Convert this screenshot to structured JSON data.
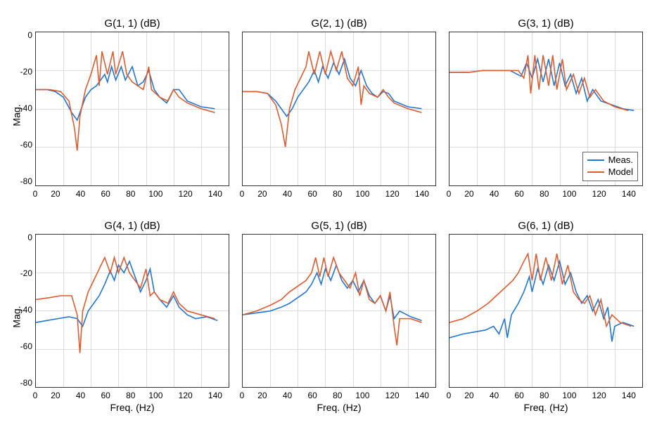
{
  "layout": {
    "rows": 2,
    "cols": 3,
    "background_color": "#ffffff",
    "grid_color": "#dcdcdc",
    "axis_color": "#333333",
    "font_family": "sans-serif",
    "title_fontsize": 15,
    "label_fontsize": 14,
    "tick_fontsize": 12
  },
  "legend": {
    "items": [
      {
        "label": "Meas.",
        "color": "#1f77d4"
      },
      {
        "label": "Model",
        "color": "#e15b2e"
      }
    ],
    "position_panel": 2
  },
  "axes": {
    "xlim": [
      0,
      140
    ],
    "ylim": [
      -80,
      0
    ],
    "xticks": [
      0,
      20,
      40,
      60,
      80,
      100,
      120,
      140
    ],
    "yticks": [
      0,
      -20,
      -40,
      -60,
      -80
    ],
    "xlabel": "Freq. (Hz)",
    "ylabel": "Mag."
  },
  "panels": [
    {
      "title": "G(1, 1) (dB)",
      "has_ylabel": true,
      "has_xlabel": false,
      "meas": [
        [
          0,
          -30
        ],
        [
          8,
          -30
        ],
        [
          14,
          -31
        ],
        [
          20,
          -34
        ],
        [
          26,
          -42
        ],
        [
          30,
          -46
        ],
        [
          34,
          -38
        ],
        [
          36,
          -34
        ],
        [
          40,
          -30
        ],
        [
          44,
          -28
        ],
        [
          48,
          -24
        ],
        [
          50,
          -22
        ],
        [
          52,
          -26
        ],
        [
          55,
          -18
        ],
        [
          58,
          -25
        ],
        [
          62,
          -18
        ],
        [
          65,
          -25
        ],
        [
          70,
          -18
        ],
        [
          74,
          -28
        ],
        [
          78,
          -26
        ],
        [
          82,
          -20
        ],
        [
          86,
          -30
        ],
        [
          90,
          -34
        ],
        [
          95,
          -37
        ],
        [
          100,
          -30
        ],
        [
          104,
          -30
        ],
        [
          110,
          -36
        ],
        [
          120,
          -39
        ],
        [
          130,
          -40
        ]
      ],
      "model": [
        [
          0,
          -30
        ],
        [
          10,
          -30
        ],
        [
          18,
          -31
        ],
        [
          24,
          -36
        ],
        [
          28,
          -50
        ],
        [
          30,
          -62
        ],
        [
          32,
          -44
        ],
        [
          36,
          -30
        ],
        [
          40,
          -22
        ],
        [
          44,
          -12
        ],
        [
          46,
          -28
        ],
        [
          48,
          -10
        ],
        [
          52,
          -22
        ],
        [
          56,
          -10
        ],
        [
          58,
          -22
        ],
        [
          63,
          -10
        ],
        [
          66,
          -22
        ],
        [
          70,
          -26
        ],
        [
          74,
          -28
        ],
        [
          78,
          -30
        ],
        [
          82,
          -18
        ],
        [
          84,
          -30
        ],
        [
          90,
          -34
        ],
        [
          96,
          -36
        ],
        [
          100,
          -30
        ],
        [
          104,
          -34
        ],
        [
          110,
          -37
        ],
        [
          120,
          -40
        ],
        [
          130,
          -42
        ]
      ]
    },
    {
      "title": "G(2, 1) (dB)",
      "has_ylabel": false,
      "has_xlabel": false,
      "meas": [
        [
          0,
          -31
        ],
        [
          10,
          -31
        ],
        [
          18,
          -32
        ],
        [
          24,
          -36
        ],
        [
          28,
          -40
        ],
        [
          32,
          -44
        ],
        [
          36,
          -40
        ],
        [
          40,
          -34
        ],
        [
          44,
          -30
        ],
        [
          48,
          -26
        ],
        [
          52,
          -20
        ],
        [
          55,
          -26
        ],
        [
          58,
          -18
        ],
        [
          62,
          -24
        ],
        [
          66,
          -16
        ],
        [
          70,
          -22
        ],
        [
          74,
          -14
        ],
        [
          78,
          -24
        ],
        [
          82,
          -28
        ],
        [
          86,
          -20
        ],
        [
          90,
          -28
        ],
        [
          94,
          -32
        ],
        [
          98,
          -34
        ],
        [
          102,
          -31
        ],
        [
          106,
          -32
        ],
        [
          110,
          -36
        ],
        [
          120,
          -39
        ],
        [
          130,
          -40
        ]
      ],
      "model": [
        [
          0,
          -31
        ],
        [
          10,
          -31
        ],
        [
          18,
          -32
        ],
        [
          24,
          -38
        ],
        [
          28,
          -48
        ],
        [
          31,
          -60
        ],
        [
          34,
          -40
        ],
        [
          38,
          -30
        ],
        [
          42,
          -24
        ],
        [
          46,
          -18
        ],
        [
          48,
          -10
        ],
        [
          52,
          -22
        ],
        [
          56,
          -10
        ],
        [
          60,
          -22
        ],
        [
          64,
          -10
        ],
        [
          68,
          -20
        ],
        [
          72,
          -10
        ],
        [
          76,
          -24
        ],
        [
          80,
          -28
        ],
        [
          84,
          -18
        ],
        [
          86,
          -38
        ],
        [
          88,
          -28
        ],
        [
          92,
          -32
        ],
        [
          98,
          -34
        ],
        [
          102,
          -30
        ],
        [
          106,
          -34
        ],
        [
          110,
          -37
        ],
        [
          120,
          -40
        ],
        [
          130,
          -42
        ]
      ]
    },
    {
      "title": "G(3, 1) (dB)",
      "has_ylabel": false,
      "has_xlabel": false,
      "meas": [
        [
          0,
          -21
        ],
        [
          14,
          -21
        ],
        [
          24,
          -20
        ],
        [
          34,
          -20
        ],
        [
          44,
          -20
        ],
        [
          52,
          -23
        ],
        [
          56,
          -16
        ],
        [
          60,
          -24
        ],
        [
          64,
          -14
        ],
        [
          68,
          -26
        ],
        [
          72,
          -14
        ],
        [
          76,
          -28
        ],
        [
          80,
          -16
        ],
        [
          84,
          -28
        ],
        [
          88,
          -22
        ],
        [
          92,
          -32
        ],
        [
          96,
          -24
        ],
        [
          100,
          -36
        ],
        [
          104,
          -30
        ],
        [
          110,
          -36
        ],
        [
          118,
          -38
        ],
        [
          126,
          -40
        ],
        [
          134,
          -41
        ]
      ],
      "model": [
        [
          0,
          -21
        ],
        [
          14,
          -21
        ],
        [
          24,
          -20
        ],
        [
          34,
          -20
        ],
        [
          44,
          -20
        ],
        [
          50,
          -20
        ],
        [
          54,
          -24
        ],
        [
          57,
          -12
        ],
        [
          59,
          -32
        ],
        [
          62,
          -12
        ],
        [
          65,
          -30
        ],
        [
          68,
          -12
        ],
        [
          72,
          -28
        ],
        [
          75,
          -12
        ],
        [
          78,
          -30
        ],
        [
          82,
          -14
        ],
        [
          85,
          -30
        ],
        [
          90,
          -22
        ],
        [
          94,
          -32
        ],
        [
          98,
          -24
        ],
        [
          102,
          -34
        ],
        [
          106,
          -30
        ],
        [
          112,
          -36
        ],
        [
          120,
          -39
        ],
        [
          130,
          -41
        ]
      ]
    },
    {
      "title": "G(4, 1) (dB)",
      "has_ylabel": true,
      "has_xlabel": true,
      "meas": [
        [
          0,
          -46
        ],
        [
          8,
          -45
        ],
        [
          16,
          -44
        ],
        [
          24,
          -43
        ],
        [
          30,
          -44
        ],
        [
          34,
          -48
        ],
        [
          38,
          -40
        ],
        [
          42,
          -36
        ],
        [
          46,
          -32
        ],
        [
          50,
          -26
        ],
        [
          54,
          -19
        ],
        [
          57,
          -24
        ],
        [
          60,
          -16
        ],
        [
          64,
          -20
        ],
        [
          68,
          -14
        ],
        [
          72,
          -22
        ],
        [
          76,
          -30
        ],
        [
          80,
          -24
        ],
        [
          83,
          -18
        ],
        [
          86,
          -30
        ],
        [
          90,
          -34
        ],
        [
          95,
          -38
        ],
        [
          100,
          -32
        ],
        [
          104,
          -38
        ],
        [
          110,
          -42
        ],
        [
          116,
          -44
        ],
        [
          124,
          -43
        ],
        [
          132,
          -45
        ]
      ],
      "model": [
        [
          0,
          -34
        ],
        [
          10,
          -33
        ],
        [
          18,
          -32
        ],
        [
          26,
          -32
        ],
        [
          30,
          -42
        ],
        [
          32,
          -62
        ],
        [
          34,
          -40
        ],
        [
          38,
          -30
        ],
        [
          42,
          -24
        ],
        [
          46,
          -18
        ],
        [
          50,
          -12
        ],
        [
          54,
          -20
        ],
        [
          57,
          -12
        ],
        [
          60,
          -20
        ],
        [
          64,
          -12
        ],
        [
          68,
          -20
        ],
        [
          72,
          -24
        ],
        [
          76,
          -28
        ],
        [
          80,
          -18
        ],
        [
          83,
          -32
        ],
        [
          86,
          -30
        ],
        [
          90,
          -34
        ],
        [
          96,
          -36
        ],
        [
          100,
          -30
        ],
        [
          104,
          -36
        ],
        [
          110,
          -40
        ],
        [
          120,
          -42
        ],
        [
          130,
          -44
        ]
      ]
    },
    {
      "title": "G(5, 1) (dB)",
      "has_ylabel": false,
      "has_xlabel": true,
      "meas": [
        [
          0,
          -42
        ],
        [
          10,
          -41
        ],
        [
          20,
          -40
        ],
        [
          28,
          -38
        ],
        [
          34,
          -36
        ],
        [
          40,
          -33
        ],
        [
          46,
          -30
        ],
        [
          50,
          -26
        ],
        [
          54,
          -20
        ],
        [
          57,
          -26
        ],
        [
          60,
          -18
        ],
        [
          64,
          -24
        ],
        [
          68,
          -16
        ],
        [
          72,
          -24
        ],
        [
          76,
          -28
        ],
        [
          80,
          -24
        ],
        [
          84,
          -30
        ],
        [
          88,
          -24
        ],
        [
          92,
          -32
        ],
        [
          96,
          -36
        ],
        [
          100,
          -32
        ],
        [
          104,
          -40
        ],
        [
          107,
          -32
        ],
        [
          110,
          -44
        ],
        [
          114,
          -40
        ],
        [
          122,
          -43
        ],
        [
          130,
          -45
        ]
      ],
      "model": [
        [
          0,
          -42
        ],
        [
          10,
          -40
        ],
        [
          20,
          -37
        ],
        [
          28,
          -34
        ],
        [
          34,
          -30
        ],
        [
          40,
          -27
        ],
        [
          46,
          -24
        ],
        [
          50,
          -20
        ],
        [
          53,
          -12
        ],
        [
          56,
          -22
        ],
        [
          59,
          -12
        ],
        [
          62,
          -22
        ],
        [
          66,
          -12
        ],
        [
          70,
          -20
        ],
        [
          74,
          -24
        ],
        [
          78,
          -28
        ],
        [
          82,
          -20
        ],
        [
          85,
          -32
        ],
        [
          88,
          -24
        ],
        [
          92,
          -34
        ],
        [
          96,
          -36
        ],
        [
          100,
          -32
        ],
        [
          104,
          -40
        ],
        [
          107,
          -30
        ],
        [
          110,
          -48
        ],
        [
          112,
          -58
        ],
        [
          114,
          -44
        ],
        [
          122,
          -44
        ],
        [
          130,
          -46
        ]
      ]
    },
    {
      "title": "G(6, 1) (dB)",
      "has_ylabel": false,
      "has_xlabel": true,
      "meas": [
        [
          0,
          -54
        ],
        [
          10,
          -52
        ],
        [
          18,
          -51
        ],
        [
          26,
          -50
        ],
        [
          32,
          -48
        ],
        [
          36,
          -52
        ],
        [
          40,
          -44
        ],
        [
          42,
          -54
        ],
        [
          45,
          -42
        ],
        [
          50,
          -36
        ],
        [
          54,
          -30
        ],
        [
          58,
          -22
        ],
        [
          60,
          -30
        ],
        [
          64,
          -18
        ],
        [
          68,
          -26
        ],
        [
          72,
          -16
        ],
        [
          76,
          -24
        ],
        [
          80,
          -14
        ],
        [
          84,
          -26
        ],
        [
          88,
          -20
        ],
        [
          92,
          -30
        ],
        [
          96,
          -36
        ],
        [
          100,
          -32
        ],
        [
          104,
          -40
        ],
        [
          108,
          -34
        ],
        [
          112,
          -44
        ],
        [
          115,
          -38
        ],
        [
          118,
          -56
        ],
        [
          120,
          -48
        ],
        [
          126,
          -46
        ],
        [
          134,
          -48
        ]
      ],
      "model": [
        [
          0,
          -46
        ],
        [
          10,
          -44
        ],
        [
          20,
          -40
        ],
        [
          28,
          -36
        ],
        [
          34,
          -32
        ],
        [
          40,
          -28
        ],
        [
          46,
          -24
        ],
        [
          50,
          -20
        ],
        [
          54,
          -14
        ],
        [
          57,
          -10
        ],
        [
          60,
          -24
        ],
        [
          63,
          -10
        ],
        [
          66,
          -24
        ],
        [
          70,
          -12
        ],
        [
          74,
          -24
        ],
        [
          78,
          -10
        ],
        [
          82,
          -26
        ],
        [
          86,
          -16
        ],
        [
          90,
          -30
        ],
        [
          94,
          -34
        ],
        [
          98,
          -36
        ],
        [
          102,
          -32
        ],
        [
          106,
          -42
        ],
        [
          110,
          -34
        ],
        [
          114,
          -48
        ],
        [
          118,
          -42
        ],
        [
          124,
          -46
        ],
        [
          132,
          -48
        ]
      ]
    }
  ],
  "series_colors": {
    "meas": "#1f77d4",
    "model": "#e15b2e"
  },
  "line_width": 1.6
}
